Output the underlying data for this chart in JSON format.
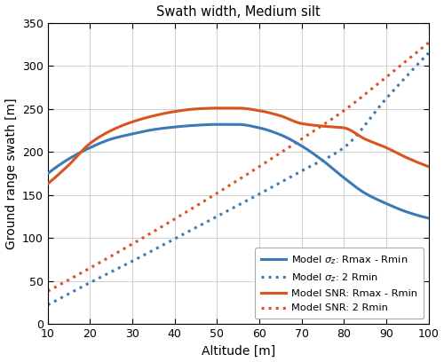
{
  "title": "Swath width, Medium silt",
  "xlabel": "Altitude [m]",
  "ylabel": "Ground range swath [m]",
  "xlim": [
    10,
    100
  ],
  "ylim": [
    0,
    350
  ],
  "xticks": [
    10,
    20,
    30,
    40,
    50,
    60,
    70,
    80,
    90,
    100
  ],
  "yticks": [
    0,
    50,
    100,
    150,
    200,
    250,
    300,
    350
  ],
  "blue_color": "#3c7ab5",
  "orange_color": "#d9541e",
  "linewidth": 2.2,
  "figsize": [
    5.0,
    4.08
  ],
  "dpi": 100,
  "blue_solid_points": [
    [
      10,
      175
    ],
    [
      15,
      192
    ],
    [
      20,
      205
    ],
    [
      25,
      215
    ],
    [
      30,
      221
    ],
    [
      35,
      226
    ],
    [
      40,
      229
    ],
    [
      45,
      231
    ],
    [
      50,
      232
    ],
    [
      55,
      232
    ],
    [
      60,
      228
    ],
    [
      65,
      220
    ],
    [
      70,
      207
    ],
    [
      75,
      190
    ],
    [
      80,
      170
    ],
    [
      85,
      152
    ],
    [
      90,
      140
    ],
    [
      95,
      130
    ],
    [
      100,
      123
    ]
  ],
  "orange_solid_points": [
    [
      10,
      163
    ],
    [
      15,
      185
    ],
    [
      20,
      210
    ],
    [
      25,
      225
    ],
    [
      30,
      235
    ],
    [
      35,
      242
    ],
    [
      40,
      247
    ],
    [
      45,
      250
    ],
    [
      50,
      251
    ],
    [
      55,
      251
    ],
    [
      60,
      248
    ],
    [
      65,
      242
    ],
    [
      70,
      233
    ],
    [
      75,
      230
    ],
    [
      80,
      228
    ],
    [
      85,
      215
    ],
    [
      90,
      205
    ],
    [
      95,
      193
    ],
    [
      100,
      183
    ]
  ],
  "blue_dotted_points": [
    [
      10,
      22
    ],
    [
      20,
      48
    ],
    [
      30,
      73
    ],
    [
      40,
      99
    ],
    [
      50,
      125
    ],
    [
      60,
      151
    ],
    [
      70,
      178
    ],
    [
      80,
      205
    ],
    [
      90,
      262
    ],
    [
      100,
      315
    ]
  ],
  "orange_dotted_points": [
    [
      10,
      38
    ],
    [
      20,
      65
    ],
    [
      30,
      93
    ],
    [
      40,
      122
    ],
    [
      50,
      152
    ],
    [
      60,
      183
    ],
    [
      70,
      215
    ],
    [
      80,
      248
    ],
    [
      90,
      287
    ],
    [
      100,
      327
    ]
  ]
}
